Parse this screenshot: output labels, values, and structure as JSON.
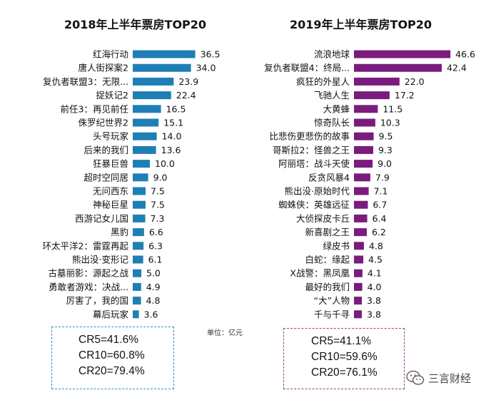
{
  "left": {
    "title": "2018年上半年票房TOP20",
    "cr": [
      "CR5=41.6%",
      "CR10=60.8%",
      "CR20=79.4%"
    ]
  },
  "right": {
    "title": "2019年上半年票房TOP20",
    "cr": [
      "CR5=41.1%",
      "CR10=59.6%",
      "CR20=76.1%"
    ]
  },
  "unit_note": "单位：亿元",
  "watermark": "三言财经",
  "colors": {
    "left_bar": "#1f7fb4",
    "right_bar": "#7a1b7e"
  },
  "chart_data": [
    {
      "type": "bar",
      "orientation": "horizontal",
      "title": "2018年上半年票房TOP20",
      "categories": [
        "红海行动",
        "唐人街探案2",
        "复仇者联盟3：无限...",
        "捉妖记2",
        "前任3：再见前任",
        "侏罗纪世界2",
        "头号玩家",
        "后来的我们",
        "狂暴巨兽",
        "超时空同居",
        "无问西东",
        "神秘巨星",
        "西游记女儿国",
        "黑豹",
        "环太平洋2：雷霆再起",
        "熊出没·变形记",
        "古墓丽影：源起之战",
        "勇敢者游戏：决战...",
        "厉害了，我的国",
        "幕后玩家"
      ],
      "values": [
        36.5,
        34.0,
        23.9,
        22.4,
        16.5,
        15.1,
        14.0,
        13.6,
        10.0,
        9.0,
        7.5,
        7.5,
        7.3,
        6.6,
        6.3,
        6.1,
        5.0,
        4.9,
        4.8,
        3.6
      ],
      "value_labels": [
        "36.5",
        "34.0",
        "23.9",
        "22.4",
        "16.5",
        "15.1",
        "14.0",
        "13.6",
        "10.0",
        "9.0",
        "7.5",
        "7.5",
        "7.3",
        "6.6",
        "6.3",
        "6.1",
        "5.0",
        "4.9",
        "4.8",
        "3.6"
      ],
      "color": "#1f7fb4"
    },
    {
      "type": "bar",
      "orientation": "horizontal",
      "title": "2019年上半年票房TOP20",
      "categories": [
        "流浪地球",
        "复仇者联盟4：终局...",
        "疯狂的外星人",
        "飞驰人生",
        "大黄蜂",
        "惊奇队长",
        "比悲伤更悲伤的故事",
        "哥斯拉2：怪兽之王",
        "阿丽塔：战斗天使",
        "反贪风暴4",
        "熊出没·原始时代",
        "蜘蛛侠：英雄远征",
        "大侦探皮卡丘",
        "新喜剧之王",
        "绿皮书",
        "白蛇：缘起",
        "X战警：黑凤凰",
        "最好的我们",
        "“大”人物",
        "千与千寻"
      ],
      "values": [
        46.6,
        42.4,
        22.0,
        17.2,
        11.5,
        10.3,
        9.5,
        9.3,
        9.0,
        7.9,
        7.1,
        6.7,
        6.4,
        6.2,
        4.8,
        4.5,
        4.1,
        4.0,
        3.8,
        3.8
      ],
      "value_labels": [
        "46.6",
        "42.4",
        "22.0",
        "17.2",
        "11.5",
        "10.3",
        "9.5",
        "9.3",
        "9.0",
        "7.9",
        "7.1",
        "6.7",
        "6.4",
        "6.2",
        "4.8",
        "4.5",
        "4.1",
        "4.0",
        "3.8",
        "3.8"
      ],
      "color": "#7a1b7e"
    }
  ]
}
